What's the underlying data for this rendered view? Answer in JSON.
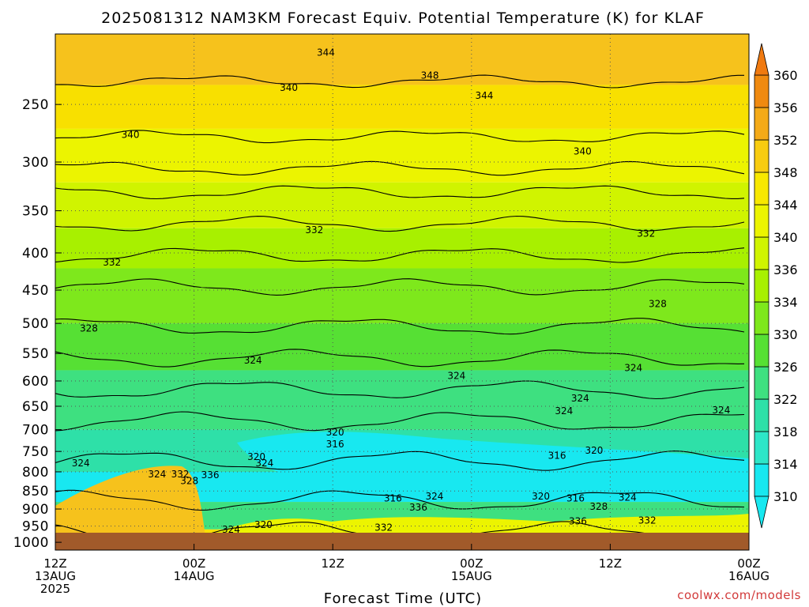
{
  "chart_data": {
    "type": "contour",
    "title": "2025081312 NAM3KM Forecast Equiv. Potential Temperature (K) for KLAF",
    "xlabel": "Forecast Time (UTC)",
    "ylabel": "",
    "credit": "coolwx.com/models",
    "x_ticks": [
      {
        "time": "12Z",
        "date": "13AUG",
        "year": "2025"
      },
      {
        "time": "00Z",
        "date": "14AUG",
        "year": ""
      },
      {
        "time": "12Z",
        "date": "",
        "year": ""
      },
      {
        "time": "00Z",
        "date": "15AUG",
        "year": ""
      },
      {
        "time": "12Z",
        "date": "",
        "year": ""
      },
      {
        "time": "00Z",
        "date": "16AUG",
        "year": ""
      }
    ],
    "forecast_hours": [
      0,
      12,
      24,
      36,
      48,
      60
    ],
    "y_ticks": [
      250,
      300,
      350,
      400,
      450,
      500,
      550,
      600,
      650,
      700,
      750,
      800,
      850,
      900,
      950,
      1000
    ],
    "y_range_hPa": [
      200,
      1025
    ],
    "colorbar_levels": [
      310,
      314,
      318,
      322,
      326,
      330,
      334,
      336,
      340,
      344,
      348,
      352,
      356,
      360
    ],
    "colorbar_colors": [
      "#18e8f0",
      "#2de6c8",
      "#2ee0a8",
      "#3ee080",
      "#56e034",
      "#7ee81c",
      "#a8f000",
      "#d0f400",
      "#ecf400",
      "#f8e800",
      "#f8cc10",
      "#f4aa18",
      "#f08a10"
    ],
    "contour_labels": [
      {
        "value": "344",
        "hour": 23.4,
        "p": 212
      },
      {
        "value": "348",
        "hour": 32.4,
        "p": 228
      },
      {
        "value": "340",
        "hour": 20.2,
        "p": 237
      },
      {
        "value": "344",
        "hour": 37.1,
        "p": 243
      },
      {
        "value": "340",
        "hour": 6.5,
        "p": 275
      },
      {
        "value": "340",
        "hour": 45.6,
        "p": 290
      },
      {
        "value": "332",
        "hour": 22.4,
        "p": 372
      },
      {
        "value": "332",
        "hour": 51.1,
        "p": 376
      },
      {
        "value": "332",
        "hour": 4.9,
        "p": 412
      },
      {
        "value": "328",
        "hour": 52.1,
        "p": 470
      },
      {
        "value": "328",
        "hour": 2.9,
        "p": 508
      },
      {
        "value": "324",
        "hour": 17.1,
        "p": 562
      },
      {
        "value": "324",
        "hour": 50.0,
        "p": 576
      },
      {
        "value": "324",
        "hour": 34.7,
        "p": 590
      },
      {
        "value": "324",
        "hour": 45.4,
        "p": 634
      },
      {
        "value": "324",
        "hour": 44.0,
        "p": 660
      },
      {
        "value": "324",
        "hour": 57.6,
        "p": 658
      },
      {
        "value": "320",
        "hour": 24.2,
        "p": 706
      },
      {
        "value": "316",
        "hour": 24.2,
        "p": 733
      },
      {
        "value": "316",
        "hour": 43.4,
        "p": 760
      },
      {
        "value": "320",
        "hour": 46.6,
        "p": 748
      },
      {
        "value": "320",
        "hour": 17.4,
        "p": 763
      },
      {
        "value": "324",
        "hour": 18.1,
        "p": 778
      },
      {
        "value": "324",
        "hour": 2.2,
        "p": 778
      },
      {
        "value": "324",
        "hour": 8.8,
        "p": 806
      },
      {
        "value": "332",
        "hour": 10.8,
        "p": 806
      },
      {
        "value": "336",
        "hour": 13.4,
        "p": 808
      },
      {
        "value": "328",
        "hour": 11.6,
        "p": 823
      },
      {
        "value": "316",
        "hour": 29.2,
        "p": 870
      },
      {
        "value": "324",
        "hour": 32.8,
        "p": 865
      },
      {
        "value": "320",
        "hour": 42.0,
        "p": 865
      },
      {
        "value": "316",
        "hour": 45.0,
        "p": 870
      },
      {
        "value": "324",
        "hour": 49.5,
        "p": 868
      },
      {
        "value": "336",
        "hour": 31.4,
        "p": 895
      },
      {
        "value": "328",
        "hour": 47.0,
        "p": 893
      },
      {
        "value": "320",
        "hour": 18.0,
        "p": 946
      },
      {
        "value": "324",
        "hour": 15.2,
        "p": 960
      },
      {
        "value": "332",
        "hour": 28.4,
        "p": 955
      },
      {
        "value": "336",
        "hour": 45.2,
        "p": 935
      },
      {
        "value": "332",
        "hour": 51.2,
        "p": 933
      }
    ]
  }
}
